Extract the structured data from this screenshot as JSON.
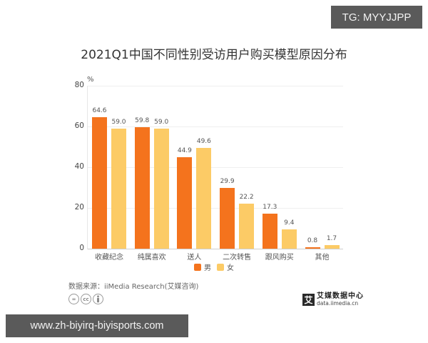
{
  "watermarks": {
    "top": "TG: MYYJJPP",
    "bottom": "www.zh-biyirq-biyisports.com"
  },
  "chart_data": {
    "type": "bar",
    "title": "2021Q1中国不同性别受访用户购买模型原因分布",
    "xlabel": "",
    "ylabel": "%",
    "ylim": [
      0,
      80
    ],
    "yticks": [
      0,
      20,
      40,
      60,
      80
    ],
    "grid": true,
    "legend_position": "bottom",
    "categories": [
      "收藏纪念",
      "纯属喜欢",
      "送人",
      "二次转售",
      "跟风购买",
      "其他"
    ],
    "series": [
      {
        "name": "男",
        "color": "#f4731d",
        "values": [
          64.6,
          59.8,
          44.9,
          29.9,
          17.3,
          0.8
        ]
      },
      {
        "name": "女",
        "color": "#fccb66",
        "values": [
          59.0,
          59.0,
          49.6,
          22.2,
          9.4,
          1.7
        ]
      }
    ],
    "value_labels": {
      "male": [
        "64.6",
        "59.8",
        "44.9",
        "29.9",
        "17.3",
        "0.8"
      ],
      "female": [
        "59.0",
        "59.0",
        "49.6",
        "22.2",
        "9.4",
        "1.7"
      ]
    }
  },
  "axis": {
    "unit": "%",
    "ticks": [
      "0",
      "20",
      "40",
      "60",
      "80"
    ]
  },
  "legend": {
    "items": [
      {
        "label": "男",
        "color": "#f4731d"
      },
      {
        "label": "女",
        "color": "#fccb66"
      }
    ]
  },
  "footer": {
    "source": "数据来源：iiMedia Research(艾媒咨询)",
    "license_icons": [
      "=",
      "cc",
      "person"
    ],
    "brand_logo": "艾",
    "brand_name": "艾媒数据中心",
    "brand_url": "data.iimedia.cn"
  }
}
